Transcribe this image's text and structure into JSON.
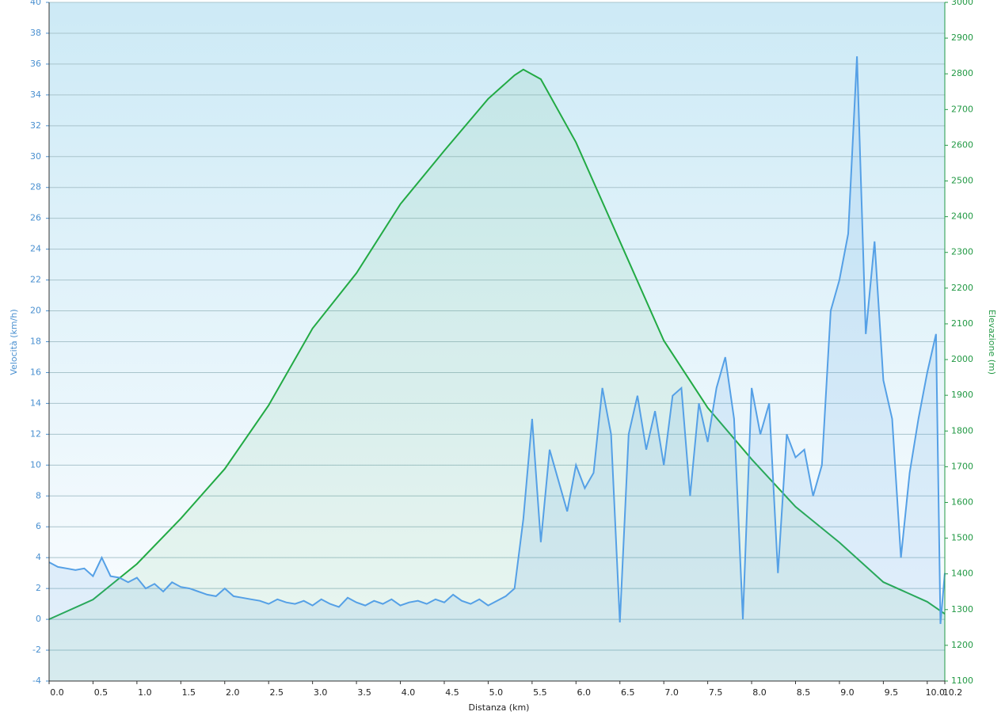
{
  "chart_data": {
    "type": "line",
    "xlabel": "Distanza  (km)",
    "ylabel": "Velocità (km/h)",
    "y2label": "Elevazione (m)",
    "xlim": [
      0,
      10.2
    ],
    "ylim": [
      -4,
      40
    ],
    "y2lim": [
      1100,
      3000
    ],
    "xticks": [
      {
        "value": 0,
        "label": "0.0"
      },
      0.5,
      {
        "value": 1,
        "label": "1.0"
      },
      1.5,
      {
        "value": 2,
        "label": "2.0"
      },
      2.5,
      {
        "value": 3,
        "label": "3.0"
      },
      3.5,
      {
        "value": 4,
        "label": "4.0"
      },
      4.5,
      {
        "value": 5,
        "label": "5.0"
      },
      5.5,
      {
        "value": 6,
        "label": "6.0"
      },
      6.5,
      {
        "value": 7,
        "label": "7.0"
      },
      7.5,
      {
        "value": 8,
        "label": "8.0"
      },
      8.5,
      {
        "value": 9,
        "label": "9.0"
      },
      9.5,
      {
        "value": 10,
        "label": "10.0"
      },
      10.2
    ],
    "yticks": [
      -4,
      -2,
      0,
      2,
      4,
      6,
      8,
      10,
      12,
      14,
      16,
      18,
      20,
      22,
      24,
      26,
      28,
      30,
      32,
      34,
      36,
      38,
      40
    ],
    "y2ticks": [
      1100,
      1200,
      1300,
      1400,
      1500,
      1600,
      1700,
      1800,
      1900,
      2000,
      2100,
      2200,
      2300,
      2400,
      2500,
      2600,
      2700,
      2800,
      2900,
      3000
    ],
    "grid": true,
    "series": [
      {
        "name": "Elevazione",
        "color": "#22aa44",
        "axis": "y2",
        "x": [
          0,
          0.5,
          1.0,
          1.5,
          2.0,
          2.5,
          3.0,
          3.5,
          4.0,
          4.5,
          5.0,
          5.3,
          5.4,
          5.6,
          6.0,
          6.5,
          7.0,
          7.5,
          8.0,
          8.5,
          9.0,
          9.5,
          10.0,
          10.2
        ],
        "values": [
          1273,
          1328,
          1428,
          1555,
          1694,
          1872,
          2087,
          2242,
          2435,
          2585,
          2730,
          2796,
          2812,
          2785,
          2608,
          2331,
          2053,
          1865,
          1721,
          1588,
          1488,
          1377,
          1322,
          1288
        ]
      },
      {
        "name": "Velocità",
        "color": "#55a0e6",
        "axis": "y",
        "x": [
          0,
          0.1,
          0.2,
          0.3,
          0.4,
          0.5,
          0.6,
          0.7,
          0.8,
          0.9,
          1.0,
          1.1,
          1.2,
          1.3,
          1.4,
          1.5,
          1.6,
          1.7,
          1.8,
          1.9,
          2.0,
          2.1,
          2.2,
          2.3,
          2.4,
          2.5,
          2.6,
          2.7,
          2.8,
          2.9,
          3.0,
          3.1,
          3.2,
          3.3,
          3.4,
          3.5,
          3.6,
          3.7,
          3.8,
          3.9,
          4.0,
          4.1,
          4.2,
          4.3,
          4.4,
          4.5,
          4.6,
          4.7,
          4.8,
          4.9,
          5.0,
          5.1,
          5.2,
          5.3,
          5.4,
          5.5,
          5.6,
          5.7,
          5.8,
          5.9,
          6.0,
          6.1,
          6.2,
          6.3,
          6.4,
          6.5,
          6.6,
          6.7,
          6.8,
          6.9,
          7.0,
          7.1,
          7.2,
          7.3,
          7.4,
          7.5,
          7.6,
          7.7,
          7.8,
          7.9,
          8.0,
          8.1,
          8.2,
          8.3,
          8.4,
          8.5,
          8.6,
          8.7,
          8.8,
          8.9,
          9.0,
          9.1,
          9.2,
          9.3,
          9.4,
          9.5,
          9.6,
          9.7,
          9.8,
          9.9,
          10.0,
          10.1,
          10.15,
          10.2
        ],
        "values": [
          3.7,
          3.4,
          3.3,
          3.2,
          3.3,
          2.8,
          4.0,
          2.8,
          2.7,
          2.4,
          2.7,
          2.0,
          2.3,
          1.8,
          2.4,
          2.1,
          2.0,
          1.8,
          1.6,
          1.5,
          2.0,
          1.5,
          1.4,
          1.3,
          1.2,
          1.0,
          1.3,
          1.1,
          1.0,
          1.2,
          0.9,
          1.3,
          1.0,
          0.8,
          1.4,
          1.1,
          0.9,
          1.2,
          1.0,
          1.3,
          0.9,
          1.1,
          1.2,
          1.0,
          1.3,
          1.1,
          1.6,
          1.2,
          1.0,
          1.3,
          0.9,
          1.2,
          1.5,
          2.0,
          6.5,
          13.0,
          5.0,
          11.0,
          9.0,
          7.0,
          10.0,
          8.5,
          9.5,
          15.0,
          12.0,
          -0.2,
          12.0,
          14.5,
          11.0,
          13.5,
          10.0,
          14.5,
          15.0,
          8.0,
          14.0,
          11.5,
          15.0,
          17.0,
          13.0,
          0.0,
          15.0,
          12.0,
          14.0,
          3.0,
          12.0,
          10.5,
          11.0,
          8.0,
          10.0,
          20.0,
          22.0,
          25.0,
          36.5,
          18.5,
          24.5,
          15.5,
          13.0,
          4.0,
          9.5,
          13.0,
          16.0,
          18.5,
          -0.3,
          3.0
        ]
      }
    ]
  }
}
